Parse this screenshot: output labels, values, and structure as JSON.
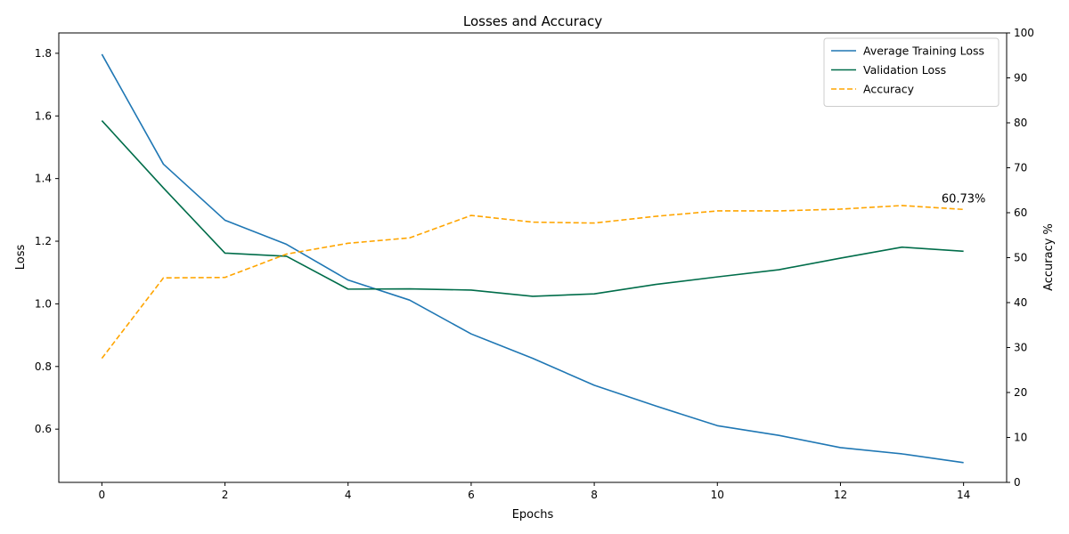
{
  "chart_data": {
    "type": "line",
    "title": "Losses and Accuracy",
    "xlabel": "Epochs",
    "ylabel_left": "Loss",
    "ylabel_right": "Accuracy %",
    "x": [
      0,
      1,
      2,
      3,
      4,
      5,
      6,
      7,
      8,
      9,
      10,
      11,
      12,
      13,
      14
    ],
    "xlim": [
      -0.7,
      14.7
    ],
    "x_ticks": [
      0,
      2,
      4,
      6,
      8,
      10,
      12,
      14
    ],
    "ylim_left": [
      0.43,
      1.865
    ],
    "y_ticks_left": [
      0.6,
      0.8,
      1.0,
      1.2,
      1.4,
      1.6,
      1.8
    ],
    "ylim_right": [
      0,
      100
    ],
    "y_ticks_right": [
      0,
      10,
      20,
      30,
      40,
      50,
      60,
      70,
      80,
      90,
      100
    ],
    "grid": false,
    "legend_position": "top-right",
    "series": [
      {
        "name": "Average Training Loss",
        "axis": "left",
        "style": "solid",
        "color": "#1f77b4",
        "values": [
          1.797,
          1.446,
          1.267,
          1.19,
          1.076,
          1.012,
          0.904,
          0.826,
          0.74,
          0.674,
          0.611,
          0.58,
          0.541,
          0.521,
          0.493
        ]
      },
      {
        "name": "Validation Loss",
        "axis": "left",
        "style": "solid",
        "color": "#006d4a",
        "values": [
          1.585,
          1.37,
          1.162,
          1.152,
          1.047,
          1.048,
          1.044,
          1.024,
          1.032,
          1.062,
          1.086,
          1.109,
          1.146,
          1.181,
          1.168
        ]
      },
      {
        "name": "Accuracy",
        "axis": "right",
        "style": "dashed",
        "color": "#ffa500",
        "values": [
          27.6,
          45.5,
          45.6,
          50.8,
          53.2,
          54.4,
          59.4,
          57.9,
          57.7,
          59.2,
          60.4,
          60.4,
          60.8,
          61.6,
          60.73
        ]
      }
    ],
    "annotations": [
      {
        "text": "60.73%",
        "x": 14,
        "y": 60.73,
        "axis": "right"
      }
    ]
  }
}
